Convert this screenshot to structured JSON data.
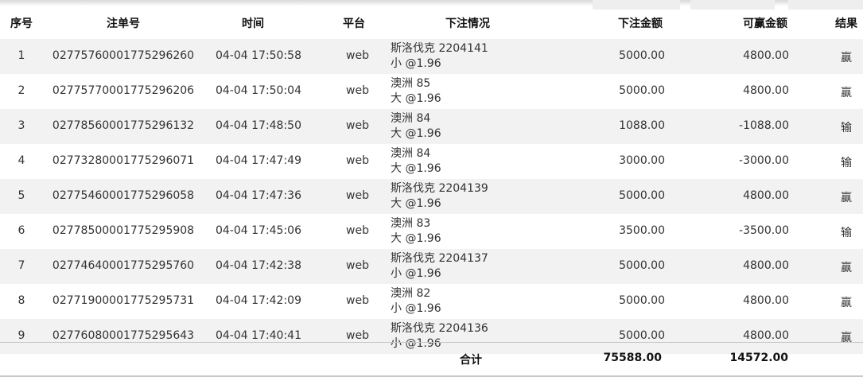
{
  "headers": {
    "index": "序号",
    "bet_id": "注单号",
    "time": "时间",
    "platform": "平台",
    "detail": "下注情况",
    "amount": "下注金额",
    "win_amount": "可赢金额",
    "result": "结果"
  },
  "rows": [
    {
      "index": "1",
      "bet_id": "02775760001775296260",
      "time": "04-04 17:50:58",
      "platform": "web",
      "detail_line1": "斯洛伐克 2204141",
      "detail_line2": "小 @1.96",
      "amount": "5000.00",
      "win_amount": "4800.00",
      "result": "赢"
    },
    {
      "index": "2",
      "bet_id": "02775770001775296206",
      "time": "04-04 17:50:04",
      "platform": "web",
      "detail_line1": "澳洲 85",
      "detail_line2": "大 @1.96",
      "amount": "5000.00",
      "win_amount": "4800.00",
      "result": "赢"
    },
    {
      "index": "3",
      "bet_id": "02778560001775296132",
      "time": "04-04 17:48:50",
      "platform": "web",
      "detail_line1": "澳洲 84",
      "detail_line2": "大 @1.96",
      "amount": "1088.00",
      "win_amount": "-1088.00",
      "result": "输"
    },
    {
      "index": "4",
      "bet_id": "02773280001775296071",
      "time": "04-04 17:47:49",
      "platform": "web",
      "detail_line1": "澳洲 84",
      "detail_line2": "大 @1.96",
      "amount": "3000.00",
      "win_amount": "-3000.00",
      "result": "输"
    },
    {
      "index": "5",
      "bet_id": "02775460001775296058",
      "time": "04-04 17:47:36",
      "platform": "web",
      "detail_line1": "斯洛伐克 2204139",
      "detail_line2": "大 @1.96",
      "amount": "5000.00",
      "win_amount": "4800.00",
      "result": "赢"
    },
    {
      "index": "6",
      "bet_id": "02778500001775295908",
      "time": "04-04 17:45:06",
      "platform": "web",
      "detail_line1": "澳洲 83",
      "detail_line2": "大 @1.96",
      "amount": "3500.00",
      "win_amount": "-3500.00",
      "result": "输"
    },
    {
      "index": "7",
      "bet_id": "02774640001775295760",
      "time": "04-04 17:42:38",
      "platform": "web",
      "detail_line1": "斯洛伐克 2204137",
      "detail_line2": "小 @1.96",
      "amount": "5000.00",
      "win_amount": "4800.00",
      "result": "赢"
    },
    {
      "index": "8",
      "bet_id": "02771900001775295731",
      "time": "04-04 17:42:09",
      "platform": "web",
      "detail_line1": "澳洲 82",
      "detail_line2": "小 @1.96",
      "amount": "5000.00",
      "win_amount": "4800.00",
      "result": "赢"
    },
    {
      "index": "9",
      "bet_id": "02776080001775295643",
      "time": "04-04 17:40:41",
      "platform": "web",
      "detail_line1": "斯洛伐克 2204136",
      "detail_line2": "小 @1.96",
      "amount": "5000.00",
      "win_amount": "4800.00",
      "result": "赢"
    }
  ],
  "footer": {
    "label": "合计",
    "total_amount": "75588.00",
    "total_win": "14572.00"
  }
}
